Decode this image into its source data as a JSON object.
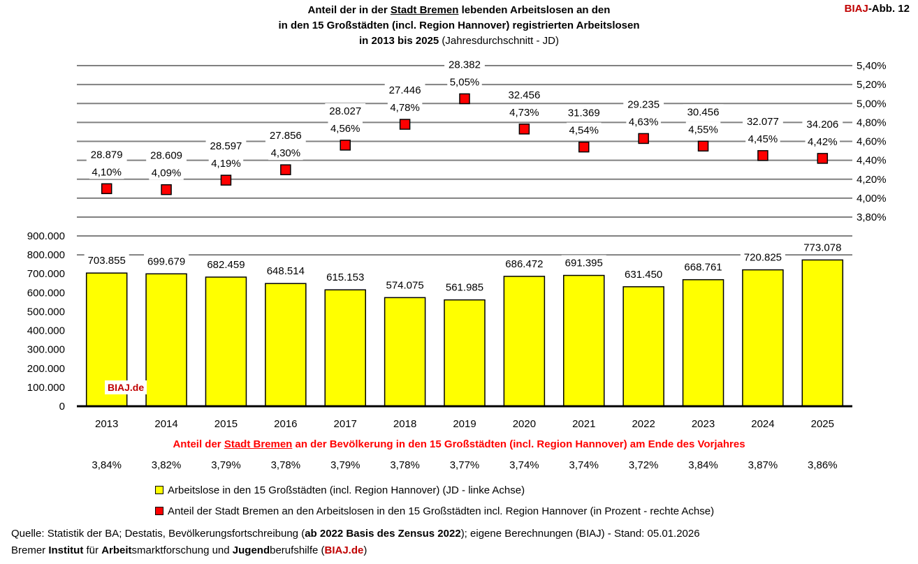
{
  "title": {
    "line1_pre": "Anteil der in der ",
    "line1_underlined": "Stadt Bremen",
    "line1_post": " lebenden Arbeitslosen an den",
    "line2": "in den 15 Großstädten (incl. Region Hannover) registrierten Arbeitslosen",
    "line3_bold": "in 2013 bis 2025",
    "line3_normal": " (Jahresdurchschnitt - JD)"
  },
  "figure_label": {
    "brand": "BIAJ",
    "rest": "-Abb. 12"
  },
  "watermark": "BIAJ.de",
  "colors": {
    "bar": "#ffff00",
    "marker": "#ff0000",
    "grid": "#808080",
    "accent_red": "#ff0000",
    "brand_red": "#c00000"
  },
  "chart_data": [
    {
      "type": "bar",
      "categories": [
        "2013",
        "2014",
        "2015",
        "2016",
        "2017",
        "2018",
        "2019",
        "2020",
        "2021",
        "2022",
        "2023",
        "2024",
        "2025"
      ],
      "series": [
        {
          "name": "Arbeitslose in den 15 Großstädten (incl. Region Hannover) (JD - linke Achse)",
          "values": [
            703855,
            699679,
            682459,
            648514,
            615153,
            574075,
            561985,
            686472,
            691395,
            631450,
            668761,
            720825,
            773078
          ]
        }
      ],
      "value_labels": [
        "703.855",
        "699.679",
        "682.459",
        "648.514",
        "615.153",
        "574.075",
        "561.985",
        "686.472",
        "691.395",
        "631.450",
        "668.761",
        "720.825",
        "773.078"
      ],
      "ylim": [
        0,
        900000
      ],
      "yticks": [
        "0",
        "100.000",
        "200.000",
        "300.000",
        "400.000",
        "500.000",
        "600.000",
        "700.000",
        "800.000",
        "900.000"
      ],
      "axis": "left"
    },
    {
      "type": "scatter",
      "categories": [
        "2013",
        "2014",
        "2015",
        "2016",
        "2017",
        "2018",
        "2019",
        "2020",
        "2021",
        "2022",
        "2023",
        "2024",
        "2025"
      ],
      "series": [
        {
          "name": "Anteil der Stadt Bremen an den Arbeitslosen in den 15 Großstädten incl. Region Hannover (in Prozent - rechte Achse)",
          "values": [
            4.1,
            4.09,
            4.19,
            4.3,
            4.56,
            4.78,
            5.05,
            4.73,
            4.54,
            4.63,
            4.55,
            4.45,
            4.42
          ]
        }
      ],
      "pct_labels": [
        "4,10%",
        "4,09%",
        "4,19%",
        "4,30%",
        "4,56%",
        "4,78%",
        "5,05%",
        "4,73%",
        "4,54%",
        "4,63%",
        "4,55%",
        "4,45%",
        "4,42%"
      ],
      "bremen_counts": [
        "28.879",
        "28.609",
        "28.597",
        "27.856",
        "28.027",
        "27.446",
        "28.382",
        "32.456",
        "31.369",
        "29.235",
        "30.456",
        "32.077",
        "34.206"
      ],
      "ylim": [
        3.8,
        5.4
      ],
      "yticks": [
        "3,80%",
        "4,00%",
        "4,20%",
        "4,40%",
        "4,60%",
        "4,80%",
        "5,00%",
        "5,20%",
        "5,40%"
      ],
      "axis": "right"
    }
  ],
  "population_share": {
    "title_pre": "Anteil der ",
    "title_underlined": "Stadt Bremen",
    "title_post": " an der Bevölkerung in den 15 Großstädten (incl. Region Hannover) am Ende des Vorjahres",
    "values": [
      "3,84%",
      "3,82%",
      "3,79%",
      "3,78%",
      "3,79%",
      "3,78%",
      "3,77%",
      "3,74%",
      "3,74%",
      "3,72%",
      "3,84%",
      "3,87%",
      "3,86%"
    ]
  },
  "legend": [
    "Arbeitslose in den 15 Großstädten (incl. Region Hannover) (JD - linke Achse)",
    "Anteil der Stadt Bremen an den Arbeitslosen in den 15 Großstädten incl. Region Hannover (in Prozent - rechte Achse)"
  ],
  "footer": {
    "source_pre": "Quelle: Statistik der BA; Destatis, Bevölkerungsfortschreibung (",
    "source_bold": "ab 2022 Basis des Zensus 2022",
    "source_post": "); eigene Berechnungen (BIAJ) - Stand: 05.01.2026",
    "inst": [
      {
        "t": "Bremer ",
        "b": false
      },
      {
        "t": "Institut",
        "b": true
      },
      {
        "t": " für ",
        "b": false
      },
      {
        "t": "Arbeit",
        "b": true
      },
      {
        "t": "smarktforschung und ",
        "b": false
      },
      {
        "t": "Jugend",
        "b": true
      },
      {
        "t": "berufshilfe (",
        "b": false
      }
    ],
    "inst_link": "BIAJ.de",
    "inst_end": ")"
  }
}
